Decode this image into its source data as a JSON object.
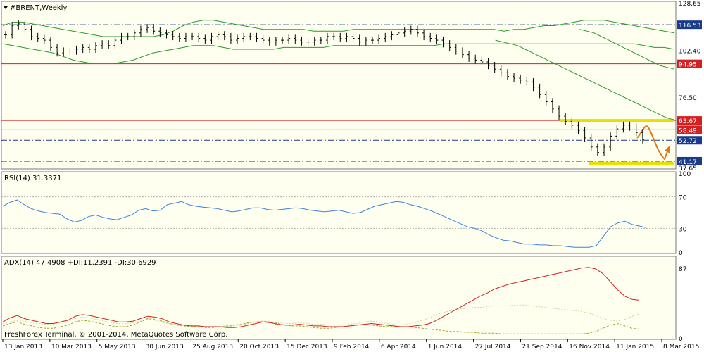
{
  "chart_data": {
    "type": "line",
    "symbol_label": "#BRENT,Weekly",
    "x_dates": [
      "13 Jan 2013",
      "10 Mar 2013",
      "5 May 2013",
      "30 Jun 2013",
      "25 Aug 2013",
      "20 Oct 2013",
      "15 Dec 2013",
      "9 Feb 2014",
      "6 Apr 2014",
      "1 Jun 2014",
      "27 Jul 2014",
      "21 Sep 2014",
      "16 Nov 2014",
      "11 Jan 2015",
      "8 Mar 2015"
    ],
    "price_panel": {
      "ylim": [
        37.65,
        128.65
      ],
      "y_ticks": [
        "128.65",
        "102.40",
        "76.50",
        "37.65"
      ],
      "price_labels": [
        {
          "text": "116.53",
          "value": 116.53,
          "color": "#1a3a8a",
          "style": "dash"
        },
        {
          "text": "94.95",
          "value": 94.95,
          "color": "#d42020",
          "style": "solid"
        },
        {
          "text": "63.67",
          "value": 63.67,
          "color": "#d42020",
          "style": "solid"
        },
        {
          "text": "58.49",
          "value": 58.49,
          "color": "#d42020",
          "style": "solid"
        },
        {
          "text": "52.72",
          "value": 52.72,
          "color": "#1a3a8a",
          "style": "dash"
        },
        {
          "text": "41.17",
          "value": 41.17,
          "color": "#1a3a8a",
          "style": "dash"
        }
      ],
      "price_series": [
        111,
        116,
        117,
        114,
        110,
        109,
        108,
        104,
        101,
        102,
        102,
        103,
        104,
        103,
        105,
        106,
        105,
        108,
        110,
        110,
        112,
        114,
        115,
        113,
        112,
        111,
        110,
        109,
        110,
        110,
        109,
        108,
        110,
        111,
        110,
        108,
        109,
        110,
        110,
        109,
        108,
        107,
        108,
        108,
        109,
        108,
        107,
        107,
        108,
        108,
        110,
        110,
        109,
        110,
        109,
        107,
        108,
        108,
        109,
        110,
        111,
        112,
        113,
        114,
        112,
        110,
        109,
        108,
        106,
        104,
        102,
        100,
        98,
        97,
        96,
        94,
        92,
        90,
        88,
        87,
        86,
        85,
        82,
        78,
        74,
        70,
        66,
        63,
        61,
        58,
        54,
        49,
        46,
        49,
        55,
        59,
        61,
        60,
        57,
        53
      ],
      "bollinger_upper": [
        116,
        118,
        118,
        117,
        116,
        115,
        114,
        113,
        112,
        111,
        110,
        110,
        110,
        110,
        110,
        110,
        111,
        113,
        116,
        118,
        119,
        119,
        118,
        117,
        116,
        115,
        114,
        114,
        114,
        114,
        114,
        113,
        113,
        113,
        113,
        114,
        114,
        114,
        114,
        114,
        114,
        114,
        114,
        114,
        114,
        114,
        114,
        114,
        114,
        114,
        113,
        114,
        114,
        115,
        116,
        116,
        117,
        118,
        119,
        119,
        119,
        118,
        117,
        116,
        115,
        114,
        113,
        112
      ],
      "bollinger_lower": [
        106,
        105,
        104,
        103,
        102,
        101,
        99,
        97,
        96,
        95,
        95,
        95,
        96,
        97,
        99,
        101,
        102,
        103,
        104,
        105,
        105,
        105,
        104,
        103,
        103,
        103,
        103,
        103,
        104,
        104,
        104,
        104,
        104,
        105,
        105,
        105,
        105,
        105,
        105,
        105,
        105,
        105,
        105,
        105,
        106,
        106,
        106,
        106,
        106,
        106,
        106,
        106,
        106,
        106,
        106,
        106,
        106,
        106,
        106,
        106,
        106,
        106,
        106,
        106,
        105,
        104,
        104,
        103
      ],
      "sma_long": [
        null,
        null,
        null,
        null,
        null,
        null,
        null,
        null,
        null,
        null,
        null,
        null,
        null,
        null,
        null,
        null,
        null,
        null,
        null,
        null,
        null,
        null,
        null,
        null,
        null,
        null,
        null,
        null,
        null,
        null,
        null,
        null,
        null,
        null,
        null,
        null,
        null,
        null,
        null,
        null,
        null,
        null,
        null,
        null,
        null,
        null,
        null,
        null,
        null,
        null,
        null,
        null,
        null,
        null,
        null,
        null,
        null,
        null,
        null,
        null,
        null,
        null,
        null,
        null,
        null,
        null,
        null,
        null,
        null,
        null,
        null,
        null,
        null,
        null,
        null,
        null,
        null,
        null,
        null,
        114,
        113,
        112,
        110,
        108,
        106,
        104,
        102,
        100,
        98,
        96,
        94,
        93,
        92
      ],
      "sma_mid": [
        null,
        null,
        null,
        null,
        null,
        null,
        null,
        null,
        null,
        null,
        null,
        null,
        null,
        null,
        null,
        null,
        null,
        null,
        null,
        null,
        null,
        null,
        null,
        null,
        null,
        null,
        null,
        null,
        null,
        null,
        null,
        null,
        null,
        null,
        null,
        null,
        null,
        null,
        null,
        null,
        null,
        null,
        null,
        null,
        null,
        null,
        null,
        null,
        null,
        null,
        null,
        null,
        null,
        null,
        null,
        null,
        null,
        null,
        null,
        null,
        null,
        null,
        null,
        null,
        null,
        null,
        108,
        107,
        106,
        105,
        103,
        101,
        99,
        97,
        95,
        93,
        91,
        89,
        87,
        85,
        83,
        81,
        79,
        77,
        75,
        73,
        71,
        69,
        67,
        65,
        64
      ]
    },
    "rsi_panel": {
      "label": "RSI(14) 31.3371",
      "ylim": [
        0,
        100
      ],
      "y_ticks": [
        "100",
        "70",
        "30",
        "0"
      ],
      "levels": [
        70,
        30
      ],
      "values": [
        58,
        63,
        66,
        60,
        55,
        52,
        50,
        49,
        48,
        42,
        38,
        40,
        45,
        47,
        44,
        42,
        41,
        44,
        47,
        53,
        55,
        52,
        53,
        60,
        62,
        64,
        60,
        58,
        57,
        56,
        55,
        53,
        51,
        52,
        54,
        56,
        56,
        54,
        53,
        54,
        55,
        56,
        55,
        53,
        52,
        51,
        52,
        53,
        51,
        49,
        50,
        54,
        58,
        60,
        62,
        64,
        63,
        60,
        58,
        55,
        52,
        48,
        44,
        40,
        36,
        32,
        30,
        27,
        22,
        18,
        15,
        14,
        12,
        10,
        10,
        9,
        9,
        8,
        8,
        7,
        6,
        6,
        6,
        8,
        20,
        32,
        37,
        39,
        35,
        33,
        31
      ]
    },
    "adx_panel": {
      "label": "ADX(14) 47.4908 +DI:11.2391 -DI:30.6929",
      "ylim": [
        0,
        100
      ],
      "y_ticks": [
        "87",
        "0"
      ],
      "adx": [
        20,
        25,
        28,
        24,
        22,
        20,
        18,
        18,
        20,
        22,
        27,
        29,
        28,
        26,
        24,
        22,
        20,
        20,
        21,
        24,
        27,
        26,
        24,
        20,
        18,
        16,
        15,
        15,
        14,
        14,
        14,
        13,
        13,
        14,
        16,
        18,
        20,
        19,
        17,
        16,
        16,
        17,
        16,
        15,
        15,
        14,
        14,
        14,
        15,
        16,
        17,
        18,
        17,
        16,
        15,
        14,
        14,
        15,
        16,
        18,
        22,
        27,
        32,
        37,
        42,
        47,
        52,
        56,
        61,
        64,
        67,
        69,
        71,
        73,
        75,
        77,
        79,
        81,
        83,
        85,
        87,
        88,
        86,
        80,
        70,
        60,
        52,
        48,
        47
      ],
      "plus_di": [
        15,
        18,
        20,
        17,
        15,
        13,
        12,
        12,
        14,
        16,
        20,
        22,
        21,
        19,
        17,
        15,
        14,
        14,
        16,
        20,
        24,
        23,
        21,
        18,
        16,
        15,
        14,
        14,
        13,
        13,
        14,
        15,
        16,
        17,
        19,
        20,
        21,
        20,
        18,
        16,
        15,
        15,
        14,
        13,
        12,
        12,
        13,
        14,
        15,
        16,
        17,
        16,
        15,
        14,
        14,
        14,
        14,
        13,
        12,
        11,
        10,
        9,
        8,
        8,
        7,
        7,
        6,
        6,
        6,
        5,
        5,
        5,
        5,
        5,
        5,
        5,
        5,
        5,
        5,
        5,
        5,
        6,
        8,
        12,
        16,
        18,
        15,
        12,
        11
      ],
      "minus_di": [
        18,
        20,
        22,
        21,
        19,
        18,
        17,
        17,
        19,
        21,
        24,
        26,
        25,
        23,
        21,
        19,
        18,
        18,
        19,
        21,
        23,
        22,
        20,
        18,
        17,
        16,
        15,
        15,
        14,
        14,
        14,
        14,
        15,
        16,
        18,
        20,
        21,
        20,
        19,
        18,
        18,
        19,
        18,
        17,
        17,
        16,
        16,
        16,
        17,
        18,
        20,
        21,
        20,
        18,
        17,
        16,
        17,
        19,
        22,
        25,
        29,
        32,
        34,
        36,
        37,
        38,
        38,
        39,
        40,
        40,
        40,
        41,
        41,
        40,
        39,
        38,
        37,
        36,
        35,
        34,
        33,
        31,
        28,
        24,
        22,
        21,
        23,
        27,
        30
      ]
    },
    "copyright": "FreshForex Terminal, © 2001-2014, MetaQuotes Software Corp."
  }
}
